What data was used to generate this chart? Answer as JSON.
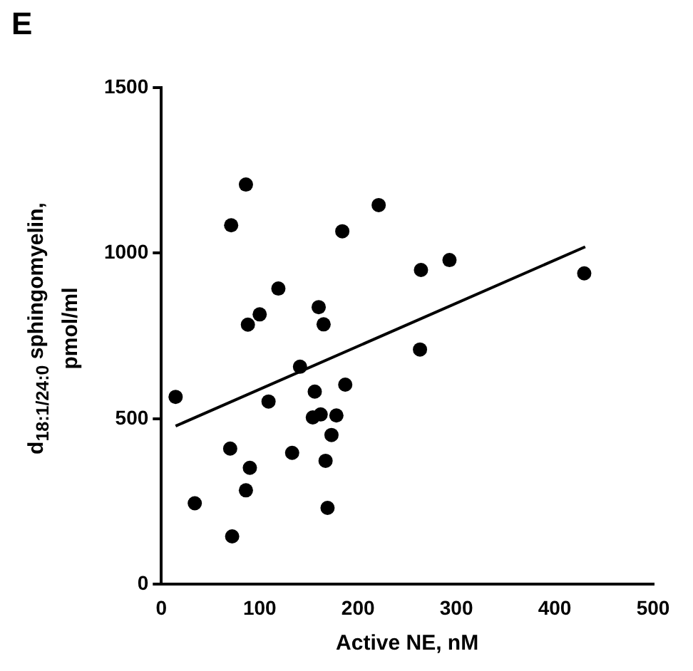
{
  "chart_data": {
    "type": "scatter",
    "xlabel": "Active NE, nM",
    "ylabel": "d$_{18:1/24:0}$ sphingomyelin, pmol/ml",
    "annotations": [
      "E"
    ],
    "xlim": [
      0,
      500
    ],
    "ylim": [
      0,
      1500
    ],
    "xticks": [
      0,
      100,
      200,
      300,
      400,
      500
    ],
    "yticks": [
      0,
      500,
      1000,
      1500
    ],
    "grid": false,
    "legend": false,
    "marker": "circle",
    "series": [
      {
        "color": "#000000",
        "x": [
          14.5,
          34,
          71,
          70,
          72,
          86,
          86,
          88,
          90,
          100,
          109,
          119,
          133,
          141,
          154,
          156,
          160,
          162,
          165,
          167,
          169,
          173,
          178,
          184,
          187,
          221,
          263,
          264,
          293,
          430
        ],
        "values": [
          566,
          245,
          1084,
          410,
          145,
          1207,
          284,
          784,
          352,
          815,
          552,
          893,
          397,
          657,
          504,
          582,
          837,
          513,
          785,
          373,
          231,
          451,
          510,
          1066,
          603,
          1145,
          709,
          949,
          979,
          939
        ]
      },
      {
        "type": "line",
        "color": "#000000",
        "x": [
          14.5,
          431
        ],
        "values": [
          478,
          1019
        ],
        "marker": "none",
        "line_style": "solid"
      }
    ]
  }
}
